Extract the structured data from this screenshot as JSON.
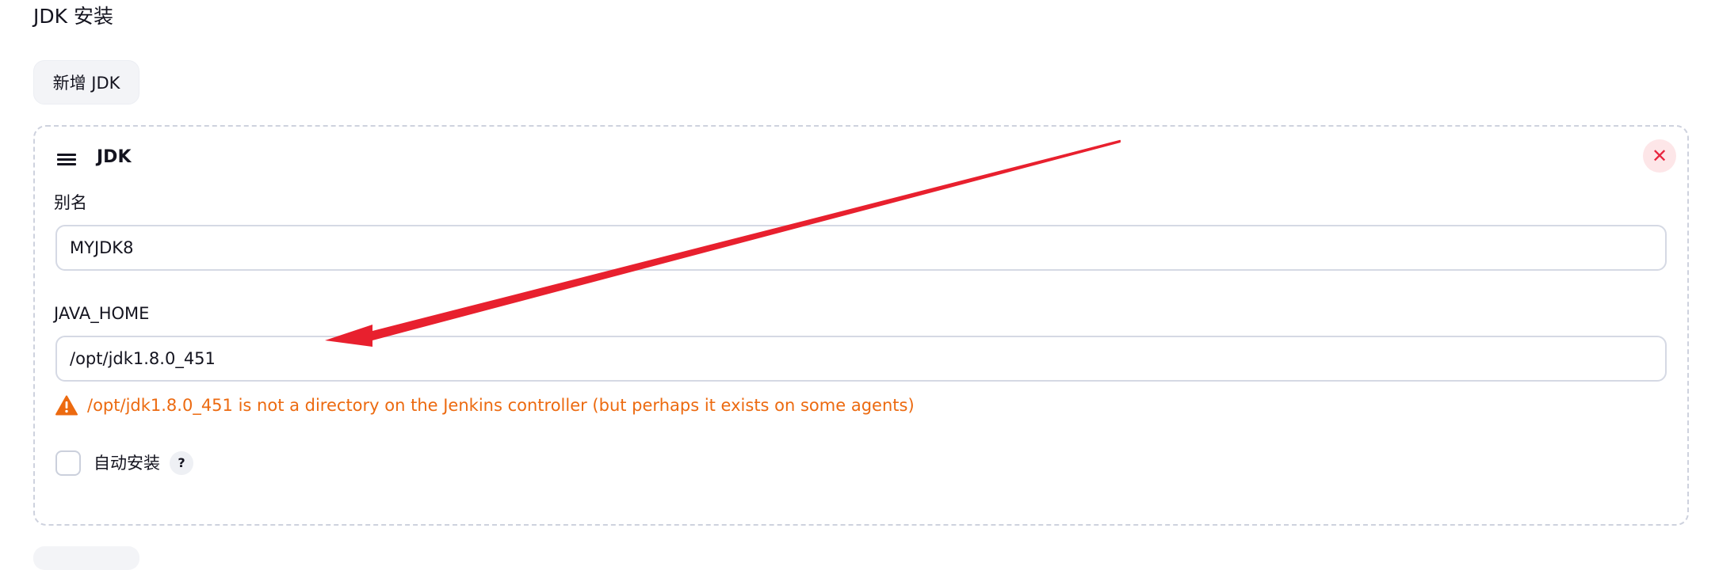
{
  "section": {
    "title": "JDK 安装",
    "add_button_label": "新增 JDK"
  },
  "card": {
    "title": "JDK",
    "delete_icon": "✕",
    "alias": {
      "label": "别名",
      "value": "MYJDK8"
    },
    "java_home": {
      "label": "JAVA_HOME",
      "value": "/opt/jdk1.8.0_451",
      "warning": "/opt/jdk1.8.0_451 is not a directory on the Jenkins controller (but perhaps it exists on some agents)"
    },
    "auto_install": {
      "label": "自动安装",
      "checked": false,
      "help": "?"
    }
  },
  "colors": {
    "warning": "#ec6a10",
    "delete": "#e8253f",
    "annotation_arrow": "#e8202e"
  },
  "icons": {
    "drag_handle": "drag-handle-icon",
    "delete": "close-icon",
    "warning": "warning-triangle-icon",
    "help": "help-icon",
    "annotation": "red-arrow-annotation"
  }
}
